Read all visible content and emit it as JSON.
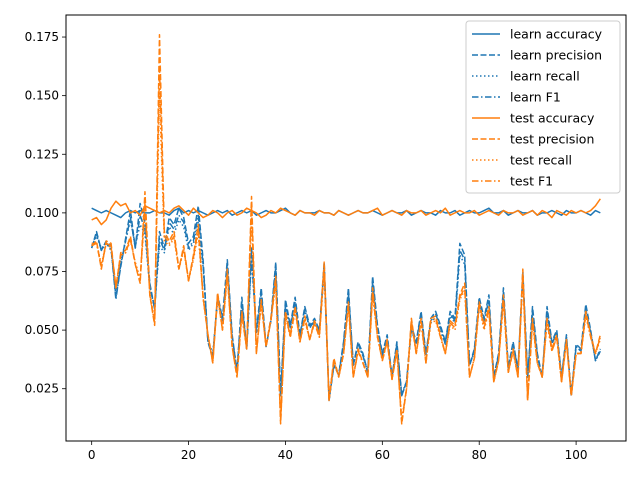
{
  "chart_data": {
    "type": "line",
    "title": "",
    "xlabel": "",
    "ylabel": "",
    "xlim": [
      -5.3,
      110.3
    ],
    "ylim": [
      0.0027,
      0.1844
    ],
    "xticks": [
      0,
      20,
      40,
      60,
      80,
      100
    ],
    "xtick_labels": [
      "0",
      "20",
      "40",
      "60",
      "80",
      "100"
    ],
    "yticks": [
      0.025,
      0.05,
      0.075,
      0.1,
      0.125,
      0.15,
      0.175
    ],
    "ytick_labels": [
      "0.025",
      "0.050",
      "0.075",
      "0.100",
      "0.125",
      "0.150",
      "0.175"
    ],
    "grid": false,
    "legend_position": "top-right",
    "x_start": 0,
    "x_step": 1,
    "series": [
      {
        "name": "learn accuracy",
        "color": "#1f77b4",
        "dash": "solid",
        "values": [
          0.102,
          0.101,
          0.1,
          0.101,
          0.1,
          0.099,
          0.098,
          0.1,
          0.101,
          0.1,
          0.101,
          0.1,
          0.1,
          0.101,
          0.1,
          0.1,
          0.099,
          0.101,
          0.102,
          0.1,
          0.101,
          0.1,
          0.101,
          0.1,
          0.099,
          0.1,
          0.101,
          0.1,
          0.101,
          0.099,
          0.1,
          0.101,
          0.1,
          0.101,
          0.099,
          0.1,
          0.101,
          0.1,
          0.1,
          0.101,
          0.102,
          0.1,
          0.099,
          0.101,
          0.1,
          0.1,
          0.1,
          0.101,
          0.1,
          0.1,
          0.099,
          0.101,
          0.1,
          0.099,
          0.1,
          0.101,
          0.1,
          0.1,
          0.101,
          0.1,
          0.099,
          0.1,
          0.101,
          0.1,
          0.1,
          0.101,
          0.099,
          0.1,
          0.101,
          0.1,
          0.1,
          0.099,
          0.101,
          0.1,
          0.1,
          0.101,
          0.099,
          0.1,
          0.101,
          0.1,
          0.1,
          0.101,
          0.102,
          0.1,
          0.1,
          0.101,
          0.099,
          0.1,
          0.101,
          0.1,
          0.1,
          0.101,
          0.099,
          0.1,
          0.1,
          0.101,
          0.1,
          0.099,
          0.101,
          0.1,
          0.1,
          0.101,
          0.1,
          0.099,
          0.101,
          0.1
        ]
      },
      {
        "name": "learn precision",
        "color": "#1f77b4",
        "dash": "dashed",
        "values": [
          0.085,
          0.092,
          0.084,
          0.088,
          0.086,
          0.064,
          0.077,
          0.089,
          0.101,
          0.085,
          0.104,
          0.096,
          0.07,
          0.059,
          0.092,
          0.085,
          0.098,
          0.095,
          0.102,
          0.098,
          0.087,
          0.09,
          0.103,
          0.08,
          0.045,
          0.038,
          0.065,
          0.055,
          0.08,
          0.048,
          0.032,
          0.064,
          0.042,
          0.085,
          0.05,
          0.068,
          0.043,
          0.055,
          0.079,
          0.022,
          0.063,
          0.052,
          0.064,
          0.048,
          0.06,
          0.052,
          0.055,
          0.05,
          0.079,
          0.02,
          0.035,
          0.031,
          0.045,
          0.068,
          0.035,
          0.045,
          0.04,
          0.032,
          0.073,
          0.052,
          0.04,
          0.048,
          0.03,
          0.045,
          0.022,
          0.028,
          0.052,
          0.045,
          0.058,
          0.04,
          0.055,
          0.058,
          0.052,
          0.045,
          0.058,
          0.055,
          0.087,
          0.082,
          0.035,
          0.042,
          0.064,
          0.055,
          0.065,
          0.03,
          0.04,
          0.068,
          0.034,
          0.045,
          0.033,
          0.075,
          0.03,
          0.06,
          0.04,
          0.03,
          0.06,
          0.045,
          0.05,
          0.03,
          0.048,
          0.022,
          0.044,
          0.042,
          0.061,
          0.05,
          0.037,
          0.042
        ]
      },
      {
        "name": "learn recall",
        "color": "#1f77b4",
        "dash": "dotted",
        "values": [
          0.086,
          0.09,
          0.085,
          0.087,
          0.084,
          0.066,
          0.079,
          0.088,
          0.097,
          0.086,
          0.095,
          0.091,
          0.068,
          0.06,
          0.086,
          0.083,
          0.094,
          0.091,
          0.097,
          0.094,
          0.084,
          0.087,
          0.096,
          0.077,
          0.046,
          0.04,
          0.063,
          0.054,
          0.076,
          0.047,
          0.033,
          0.061,
          0.042,
          0.08,
          0.049,
          0.065,
          0.043,
          0.054,
          0.075,
          0.023,
          0.06,
          0.051,
          0.061,
          0.047,
          0.058,
          0.051,
          0.053,
          0.049,
          0.075,
          0.021,
          0.035,
          0.031,
          0.044,
          0.065,
          0.035,
          0.044,
          0.039,
          0.032,
          0.069,
          0.051,
          0.039,
          0.047,
          0.03,
          0.044,
          0.023,
          0.028,
          0.05,
          0.044,
          0.056,
          0.039,
          0.053,
          0.056,
          0.05,
          0.044,
          0.056,
          0.053,
          0.082,
          0.078,
          0.035,
          0.041,
          0.061,
          0.053,
          0.062,
          0.03,
          0.039,
          0.065,
          0.034,
          0.044,
          0.033,
          0.071,
          0.03,
          0.057,
          0.039,
          0.03,
          0.057,
          0.044,
          0.049,
          0.03,
          0.047,
          0.023,
          0.043,
          0.041,
          0.058,
          0.049,
          0.037,
          0.041
        ]
      },
      {
        "name": "learn F1",
        "color": "#1f77b4",
        "dash": "dashdot",
        "values": [
          0.085,
          0.091,
          0.084,
          0.087,
          0.085,
          0.063,
          0.078,
          0.088,
          0.098,
          0.085,
          0.099,
          0.093,
          0.069,
          0.059,
          0.089,
          0.084,
          0.096,
          0.093,
          0.099,
          0.096,
          0.085,
          0.088,
          0.099,
          0.078,
          0.045,
          0.039,
          0.064,
          0.054,
          0.078,
          0.047,
          0.032,
          0.062,
          0.042,
          0.082,
          0.049,
          0.066,
          0.043,
          0.054,
          0.077,
          0.022,
          0.061,
          0.051,
          0.062,
          0.047,
          0.059,
          0.051,
          0.054,
          0.049,
          0.077,
          0.02,
          0.035,
          0.031,
          0.044,
          0.066,
          0.035,
          0.044,
          0.039,
          0.032,
          0.071,
          0.051,
          0.039,
          0.047,
          0.03,
          0.044,
          0.022,
          0.028,
          0.051,
          0.044,
          0.057,
          0.039,
          0.054,
          0.057,
          0.051,
          0.044,
          0.057,
          0.054,
          0.084,
          0.08,
          0.035,
          0.041,
          0.062,
          0.054,
          0.063,
          0.03,
          0.039,
          0.066,
          0.034,
          0.044,
          0.033,
          0.073,
          0.03,
          0.058,
          0.039,
          0.03,
          0.058,
          0.044,
          0.049,
          0.03,
          0.047,
          0.022,
          0.043,
          0.041,
          0.059,
          0.049,
          0.037,
          0.041
        ]
      },
      {
        "name": "test accuracy",
        "color": "#ff7f0e",
        "dash": "solid",
        "values": [
          0.097,
          0.098,
          0.095,
          0.097,
          0.102,
          0.105,
          0.103,
          0.104,
          0.1,
          0.101,
          0.099,
          0.103,
          0.102,
          0.101,
          0.1,
          0.101,
          0.1,
          0.102,
          0.103,
          0.101,
          0.099,
          0.102,
          0.1,
          0.098,
          0.099,
          0.101,
          0.1,
          0.098,
          0.1,
          0.101,
          0.099,
          0.1,
          0.102,
          0.101,
          0.1,
          0.098,
          0.099,
          0.101,
          0.1,
          0.102,
          0.101,
          0.1,
          0.099,
          0.101,
          0.1,
          0.1,
          0.099,
          0.101,
          0.1,
          0.1,
          0.099,
          0.101,
          0.1,
          0.099,
          0.1,
          0.101,
          0.1,
          0.1,
          0.101,
          0.102,
          0.099,
          0.1,
          0.101,
          0.1,
          0.099,
          0.101,
          0.1,
          0.1,
          0.101,
          0.099,
          0.1,
          0.101,
          0.1,
          0.102,
          0.099,
          0.1,
          0.101,
          0.1,
          0.1,
          0.101,
          0.099,
          0.1,
          0.101,
          0.1,
          0.099,
          0.101,
          0.1,
          0.1,
          0.101,
          0.099,
          0.1,
          0.101,
          0.099,
          0.101,
          0.1,
          0.098,
          0.101,
          0.1,
          0.099,
          0.101,
          0.1,
          0.101,
          0.1,
          0.101,
          0.103,
          0.106
        ]
      },
      {
        "name": "test precision",
        "color": "#ff7f0e",
        "dash": "dashed",
        "values": [
          0.086,
          0.088,
          0.076,
          0.088,
          0.087,
          0.068,
          0.083,
          0.084,
          0.09,
          0.078,
          0.07,
          0.109,
          0.065,
          0.052,
          0.176,
          0.092,
          0.088,
          0.092,
          0.076,
          0.086,
          0.071,
          0.082,
          0.095,
          0.064,
          0.048,
          0.036,
          0.066,
          0.05,
          0.076,
          0.043,
          0.03,
          0.058,
          0.042,
          0.107,
          0.04,
          0.063,
          0.043,
          0.055,
          0.073,
          0.01,
          0.058,
          0.048,
          0.06,
          0.045,
          0.056,
          0.046,
          0.054,
          0.048,
          0.079,
          0.02,
          0.038,
          0.03,
          0.04,
          0.062,
          0.03,
          0.042,
          0.036,
          0.03,
          0.068,
          0.048,
          0.037,
          0.046,
          0.029,
          0.042,
          0.01,
          0.025,
          0.055,
          0.04,
          0.055,
          0.036,
          0.055,
          0.056,
          0.048,
          0.04,
          0.054,
          0.052,
          0.065,
          0.07,
          0.03,
          0.038,
          0.062,
          0.052,
          0.06,
          0.028,
          0.037,
          0.065,
          0.032,
          0.042,
          0.03,
          0.076,
          0.02,
          0.055,
          0.036,
          0.03,
          0.055,
          0.042,
          0.048,
          0.028,
          0.046,
          0.022,
          0.04,
          0.04,
          0.058,
          0.048,
          0.04,
          0.048
        ]
      },
      {
        "name": "test recall",
        "color": "#ff7f0e",
        "dash": "dotted",
        "values": [
          0.087,
          0.087,
          0.078,
          0.087,
          0.085,
          0.069,
          0.082,
          0.083,
          0.088,
          0.079,
          0.072,
          0.1,
          0.066,
          0.054,
          0.15,
          0.088,
          0.086,
          0.089,
          0.076,
          0.084,
          0.071,
          0.08,
          0.091,
          0.064,
          0.048,
          0.037,
          0.064,
          0.05,
          0.073,
          0.043,
          0.031,
          0.056,
          0.042,
          0.098,
          0.041,
          0.061,
          0.043,
          0.054,
          0.07,
          0.012,
          0.056,
          0.047,
          0.058,
          0.045,
          0.054,
          0.046,
          0.053,
          0.047,
          0.075,
          0.021,
          0.037,
          0.03,
          0.04,
          0.06,
          0.03,
          0.041,
          0.036,
          0.03,
          0.065,
          0.047,
          0.037,
          0.045,
          0.029,
          0.041,
          0.012,
          0.025,
          0.053,
          0.04,
          0.053,
          0.036,
          0.053,
          0.054,
          0.047,
          0.04,
          0.052,
          0.05,
          0.063,
          0.067,
          0.03,
          0.038,
          0.06,
          0.05,
          0.058,
          0.028,
          0.037,
          0.062,
          0.032,
          0.041,
          0.03,
          0.072,
          0.021,
          0.053,
          0.036,
          0.03,
          0.053,
          0.041,
          0.047,
          0.028,
          0.045,
          0.023,
          0.04,
          0.04,
          0.056,
          0.047,
          0.04,
          0.046
        ]
      },
      {
        "name": "test F1",
        "color": "#ff7f0e",
        "dash": "dashdot",
        "values": [
          0.086,
          0.087,
          0.077,
          0.087,
          0.086,
          0.068,
          0.082,
          0.083,
          0.089,
          0.078,
          0.071,
          0.104,
          0.065,
          0.053,
          0.162,
          0.09,
          0.087,
          0.09,
          0.076,
          0.085,
          0.071,
          0.081,
          0.093,
          0.064,
          0.048,
          0.036,
          0.065,
          0.05,
          0.074,
          0.043,
          0.03,
          0.057,
          0.042,
          0.102,
          0.04,
          0.062,
          0.043,
          0.054,
          0.071,
          0.011,
          0.057,
          0.047,
          0.059,
          0.045,
          0.055,
          0.046,
          0.053,
          0.047,
          0.077,
          0.02,
          0.037,
          0.03,
          0.04,
          0.061,
          0.03,
          0.041,
          0.036,
          0.03,
          0.066,
          0.047,
          0.037,
          0.045,
          0.029,
          0.041,
          0.011,
          0.025,
          0.054,
          0.04,
          0.054,
          0.036,
          0.054,
          0.055,
          0.047,
          0.04,
          0.053,
          0.051,
          0.064,
          0.068,
          0.03,
          0.038,
          0.061,
          0.051,
          0.059,
          0.028,
          0.037,
          0.063,
          0.032,
          0.041,
          0.03,
          0.074,
          0.02,
          0.054,
          0.036,
          0.03,
          0.054,
          0.041,
          0.047,
          0.028,
          0.045,
          0.022,
          0.04,
          0.04,
          0.057,
          0.047,
          0.04,
          0.047
        ]
      }
    ]
  }
}
